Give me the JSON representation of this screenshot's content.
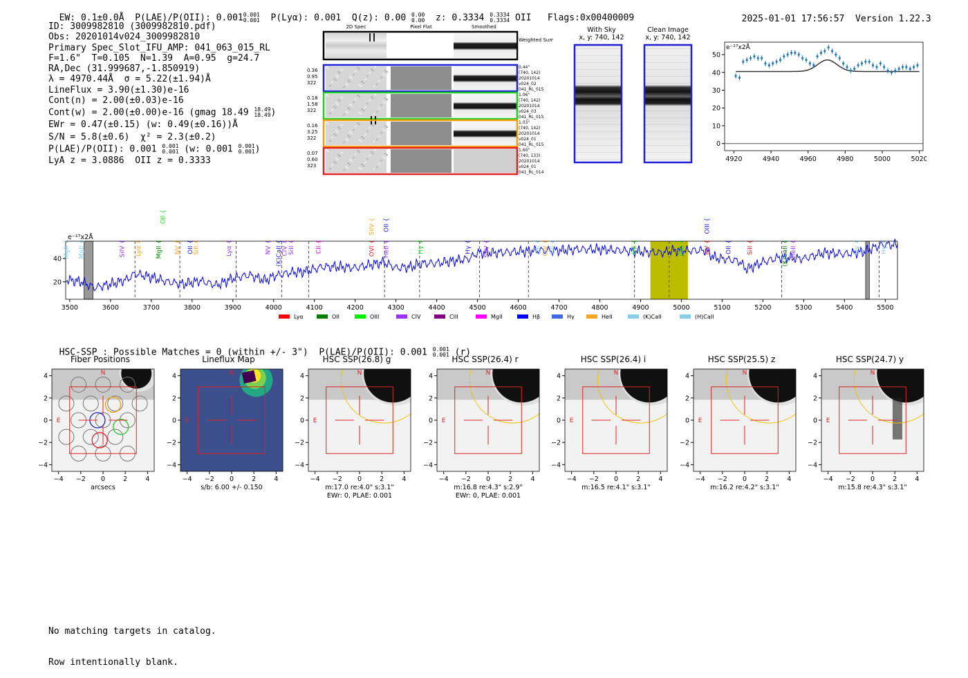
{
  "header": {
    "left": "EW: 0.1±0.0Å  P(LAE)/P(OII): 0.001",
    "plae_sup": "0.001",
    "plae_sub": "0.001",
    "mid": "P(Lyα): 0.001  Q(z): 0.00",
    "qz_sup": "0.00",
    "qz_sub": "0.00",
    "z_label": "z: 0.3334",
    "z_sup": "0.3334",
    "z_sub": "0.3334",
    "line": "OII",
    "flags": "Flags:0x00400009",
    "datetime": "2025-01-01 17:56:57",
    "version": "Version 1.22.3"
  },
  "info": {
    "id": "ID: 3009982810 (3009982810.pdf)",
    "obs": "Obs: 20201014v024_3009982810",
    "primary": "Primary Spec_Slot_IFU_AMP: 041_063_015_RL",
    "fit": "F=1.6\"  T=0.105  N=1.39  A=0.95  g=24.7",
    "radec": "RA,Dec (31.999687,-1.850919)",
    "lambda": "λ = 4970.44Å  σ = 5.22(±1.94)Å",
    "lineflux": "LineFlux = 3.90(±1.30)e-16",
    "contn": "Cont(n) = 2.00(±0.03)e-16",
    "contw": "Cont(w) = 2.00(±0.00)e-16 (gmag 18.49",
    "gmag_sup": "18.49",
    "gmag_sub": "18.49",
    "ewr": "EWr = 0.47(±0.15) (w: 0.49(±0.16))Å",
    "sn": "S/N = 5.8(±0.6)  χ² = 2.3(±0.2)",
    "plae": "P(LAE)/P(OII): 0.001",
    "plae_sup": "0.001",
    "plae_sub": "0.001",
    "plae_w": "(w: 0.001",
    "plae_w_sup": "0.001",
    "plae_w_sub": "0.001",
    "lya_z": "LyA z = 3.0886  OII z = 0.3333"
  },
  "cutouts": {
    "col_2d": "2D Spec",
    "col_flat": "Pixel Flat",
    "col_smooth": "Smoothed",
    "weighted_sum": "Weighted Sum",
    "rows": [
      {
        "vals": [
          "0.36",
          "0.95",
          "322"
        ],
        "info": [
          "0.44\"",
          "(740, 142)",
          "20201014",
          "v024_02",
          "041_RL_015"
        ],
        "color": "#1f1fd6"
      },
      {
        "vals": [
          "0.18",
          "1.58",
          "322"
        ],
        "info": [
          "1.06\"",
          "(740, 142)",
          "20201014",
          "v024_03",
          "041_RL_015"
        ],
        "color": "#22cc22"
      },
      {
        "vals": [
          "0.16",
          "3.25",
          "322"
        ],
        "info": [
          "1.03\"",
          "(740, 142)",
          "20201014",
          "v024_01",
          "041_RL_015"
        ],
        "color": "#f39c12"
      },
      {
        "vals": [
          "0.07",
          "0.60",
          "323"
        ],
        "info": [
          "1.60\"",
          "(740, 133)",
          "20201014",
          "v024_01",
          "041_RL_014"
        ],
        "color": "#e02020"
      }
    ]
  },
  "sky": {
    "with_sky": "With Sky",
    "with_sky_xy": "x, y: 740, 142",
    "clean": "Clean Image",
    "clean_xy": "x, y: 740, 142"
  },
  "zoom_chart": {
    "unit": "e⁻¹⁷x2Å",
    "xticks": [
      "4920",
      "4940",
      "4960",
      "4980",
      "5000",
      "5020"
    ],
    "yticks": [
      "0",
      "10",
      "20",
      "30",
      "40",
      "50"
    ]
  },
  "chart_data": [
    {
      "type": "scatter",
      "title": "",
      "xlabel": "",
      "ylabel": "e⁻¹⁷x2Å",
      "xlim": [
        4915,
        5022
      ],
      "ylim": [
        -4,
        57
      ],
      "series": [
        {
          "values": [
            [
              4921,
              38
            ],
            [
              4923,
              37
            ],
            [
              4925,
              46
            ],
            [
              4927,
              47
            ],
            [
              4929,
              48
            ],
            [
              4931,
              49
            ],
            [
              4933,
              48
            ],
            [
              4935,
              48
            ],
            [
              4937,
              45
            ],
            [
              4939,
              44
            ],
            [
              4941,
              45
            ],
            [
              4943,
              46
            ],
            [
              4945,
              47
            ],
            [
              4947,
              49
            ],
            [
              4949,
              50
            ],
            [
              4951,
              51
            ],
            [
              4953,
              51
            ],
            [
              4955,
              50
            ],
            [
              4957,
              48
            ],
            [
              4959,
              47
            ],
            [
              4961,
              45
            ],
            [
              4963,
              44
            ],
            [
              4965,
              49
            ],
            [
              4967,
              51
            ],
            [
              4969,
              52
            ],
            [
              4971,
              54
            ],
            [
              4973,
              52
            ],
            [
              4975,
              50
            ],
            [
              4977,
              48
            ],
            [
              4979,
              45
            ],
            [
              4981,
              43
            ],
            [
              4983,
              41
            ],
            [
              4985,
              42
            ],
            [
              4987,
              44
            ],
            [
              4989,
              45
            ],
            [
              4991,
              46
            ],
            [
              4993,
              46
            ],
            [
              4995,
              44
            ],
            [
              4997,
              43
            ],
            [
              4999,
              45
            ],
            [
              5001,
              43
            ],
            [
              5003,
              41
            ],
            [
              5005,
              40
            ],
            [
              5007,
              41
            ],
            [
              5009,
              42
            ],
            [
              5011,
              43
            ],
            [
              5013,
              43
            ],
            [
              5015,
              42
            ],
            [
              5017,
              43
            ],
            [
              5019,
              44
            ]
          ]
        }
      ],
      "fit": {
        "continuum": 40.5,
        "center": 4970.4,
        "sigma": 5.2,
        "amplitude": 6.5
      }
    },
    {
      "type": "line",
      "title": "",
      "xlabel": "",
      "ylabel": "e⁻¹⁷x2Å",
      "xlim": [
        3490,
        5530
      ],
      "ylim": [
        5,
        55
      ],
      "xticks": [
        "3500",
        "3600",
        "3700",
        "3800",
        "3900",
        "4000",
        "4100",
        "4200",
        "4300",
        "4400",
        "4500",
        "4600",
        "4700",
        "4800",
        "4900",
        "5000",
        "5100",
        "5200",
        "5300",
        "5400",
        "5500"
      ],
      "yticks": [
        "20",
        "40"
      ],
      "series": [
        {
          "name": "spectrum",
          "color": "#0000ee",
          "anchors": [
            [
              3490,
              22
            ],
            [
              3530,
              20
            ],
            [
              3560,
              15
            ],
            [
              3600,
              18
            ],
            [
              3640,
              22
            ],
            [
              3660,
              27
            ],
            [
              3700,
              24
            ],
            [
              3740,
              20
            ],
            [
              3780,
              18
            ],
            [
              3820,
              21
            ],
            [
              3860,
              17
            ],
            [
              3900,
              23
            ],
            [
              3940,
              26
            ],
            [
              3980,
              21
            ],
            [
              4000,
              25
            ],
            [
              4040,
              28
            ],
            [
              4080,
              29
            ],
            [
              4120,
              33
            ],
            [
              4160,
              33
            ],
            [
              4200,
              32
            ],
            [
              4240,
              35
            ],
            [
              4270,
              37
            ],
            [
              4300,
              32
            ],
            [
              4340,
              33
            ],
            [
              4360,
              36
            ],
            [
              4400,
              36
            ],
            [
              4440,
              38
            ],
            [
              4480,
              40
            ],
            [
              4500,
              45
            ],
            [
              4540,
              45
            ],
            [
              4600,
              46
            ],
            [
              4650,
              47
            ],
            [
              4700,
              47
            ],
            [
              4750,
              48
            ],
            [
              4800,
              48
            ],
            [
              4850,
              47
            ],
            [
              4900,
              46
            ],
            [
              4950,
              45
            ],
            [
              4980,
              47
            ],
            [
              5020,
              47
            ],
            [
              5060,
              47
            ],
            [
              5080,
              41
            ],
            [
              5100,
              40
            ],
            [
              5140,
              38
            ],
            [
              5160,
              31
            ],
            [
              5200,
              37
            ],
            [
              5240,
              41
            ],
            [
              5300,
              40
            ],
            [
              5350,
              45
            ],
            [
              5400,
              44
            ],
            [
              5450,
              46
            ],
            [
              5490,
              52
            ],
            [
              5530,
              52
            ]
          ]
        }
      ],
      "masked_regions": [
        [
          3535,
          3557
        ],
        [
          5452,
          5461
        ]
      ],
      "highlight_region": [
        4924,
        5016
      ],
      "line_markers": [
        {
          "label": "MgII",
          "x": 3492,
          "color": "#87ceeb",
          "level": 2
        },
        {
          "label": "MgII",
          "x": 3528,
          "color": "#87ceeb",
          "level": 2
        },
        {
          "label": "SiIV",
          "x": 3628,
          "color": "#9b30ff",
          "level": 2
        },
        {
          "label": "Lyα",
          "x": 3668,
          "color": "#f5a623",
          "level": 2
        },
        {
          "label": "MgII",
          "x": 3718,
          "color": "#008000",
          "level": 2
        },
        {
          "label": "OII",
          "x": 3728,
          "color": "#22dd22",
          "level": 0
        },
        {
          "label": "NV",
          "x": 3764,
          "color": "#f5a623",
          "level": 2
        },
        {
          "label": "OII",
          "x": 3795,
          "color": "#1f1fd6",
          "level": 2
        },
        {
          "label": "SiII",
          "x": 3810,
          "color": "#f5a623",
          "level": 2
        },
        {
          "label": "Lyα",
          "x": 3890,
          "color": "#9b30ff",
          "level": 2
        },
        {
          "label": "NV",
          "x": 3986,
          "color": "#9b30ff",
          "level": 2
        },
        {
          "label": "(K)CaII",
          "x": 4012,
          "color": "#1f1fd6",
          "level": 2
        },
        {
          "label": "CIV",
          "x": 4027,
          "color": "#9b30ff",
          "level": 2
        },
        {
          "label": "SiII",
          "x": 4043,
          "color": "#9b30ff",
          "level": 2
        },
        {
          "label": "CII",
          "x": 4110,
          "color": "#ff00ff",
          "level": 2
        },
        {
          "label": "SiIV",
          "x": 4240,
          "color": "#f5a623",
          "level": 1
        },
        {
          "label": "OVI",
          "x": 4240,
          "color": "#e02020",
          "level": 2
        },
        {
          "label": "OII",
          "x": 4276,
          "color": "#1f1fd6",
          "level": 1
        },
        {
          "label": "HeII",
          "x": 4276,
          "color": "#9b30ff",
          "level": 2
        },
        {
          "label": "Hγ",
          "x": 4360,
          "color": "#22dd22",
          "level": 2
        },
        {
          "label": "Hγ",
          "x": 4476,
          "color": "#1f1fd6",
          "level": 2
        },
        {
          "label": "SiIV",
          "x": 4522,
          "color": "#9b30ff",
          "level": 2
        },
        {
          "label": "OII",
          "x": 4648,
          "color": "#87ceeb",
          "level": 2
        },
        {
          "label": "CIV",
          "x": 4666,
          "color": "#f5a623",
          "level": 2
        },
        {
          "label": "OII",
          "x": 4684,
          "color": "#87ceeb",
          "level": 2
        },
        {
          "label": "Hβ",
          "x": 4884,
          "color": "#22dd22",
          "level": 2
        },
        {
          "label": "OIII",
          "x": 5000,
          "color": "#22dd22",
          "level": 2
        },
        {
          "label": "OIII",
          "x": 5063,
          "color": "#1f1fd6",
          "level": 1
        },
        {
          "label": "NV",
          "x": 5063,
          "color": "#e02020",
          "level": 2
        },
        {
          "label": "OII",
          "x": 5115,
          "color": "#1f1fd6",
          "level": 2
        },
        {
          "label": "SiII",
          "x": 5168,
          "color": "#e02020",
          "level": 2
        },
        {
          "label": "(K)CaII",
          "x": 5254,
          "color": "#008000",
          "level": 2
        },
        {
          "label": "HeII",
          "x": 5274,
          "color": "#9b30ff",
          "level": 2
        },
        {
          "label": "Hγ",
          "x": 5430,
          "color": "#87ceeb",
          "level": 2
        },
        {
          "label": "Hγ",
          "x": 5496,
          "color": "#87ceeb",
          "level": 2
        }
      ],
      "dashed_lines": [
        3660,
        3770,
        3908,
        4020,
        4086,
        4272,
        4358,
        4505,
        4625,
        4885,
        4970,
        5246,
        5485
      ],
      "legend": [
        {
          "label": "Lyα",
          "color": "#ff0000"
        },
        {
          "label": "OII",
          "color": "#008000"
        },
        {
          "label": "OIII",
          "color": "#00ee00"
        },
        {
          "label": "CIV",
          "color": "#9b30ff"
        },
        {
          "label": "CIII",
          "color": "#800080"
        },
        {
          "label": "MgII",
          "color": "#ff00ff"
        },
        {
          "label": "Hβ",
          "color": "#0000ff"
        },
        {
          "label": "Hγ",
          "color": "#4169e1"
        },
        {
          "label": "HeII",
          "color": "#f5a623"
        },
        {
          "label": "(K)CaII",
          "color": "#87ceeb"
        },
        {
          "label": "(H)CaII",
          "color": "#87ceeb"
        }
      ]
    }
  ],
  "hsc": {
    "line": "HSC-SSP : Possible Matches = 0 (within +/- 3\")  P(LAE)/P(OII): 0.001",
    "sup": "0.001",
    "sub": "0.001",
    "band": "(r)",
    "panels": [
      {
        "title": "Fiber Positions",
        "caption": [
          "arcsecs"
        ]
      },
      {
        "title": "Lineflux Map",
        "caption": [
          "s/b: 6.00 +/- 0.150"
        ]
      },
      {
        "title": "HSC SSP(26.8) g",
        "caption": [
          "m:17.0  re:4.0\"  s:3.1\"",
          "EWr: 0, PLAE: 0.001"
        ]
      },
      {
        "title": "HSC SSP(26.4) r",
        "caption": [
          "m:16.8  re:4.3\"  s:2.9\"",
          "EWr: 0, PLAE: 0.001"
        ]
      },
      {
        "title": "HSC SSP(26.4) i",
        "caption": [
          "m:16.5  re:4.1\"  s:3.1\""
        ]
      },
      {
        "title": "HSC SSP(25.5) z",
        "caption": [
          "m:16.2  re:4.2\"  s:3.1\""
        ]
      },
      {
        "title": "HSC SSP(24.7) y",
        "caption": [
          "m:15.8  re:4.3\"  s:3.1\""
        ]
      }
    ],
    "axis_ticks": [
      "−4",
      "−2",
      "0",
      "2",
      "4"
    ],
    "label_n": "N",
    "label_e": "E"
  },
  "footer": {
    "line1": "No matching targets in catalog.",
    "line2": "Row intentionally blank."
  }
}
